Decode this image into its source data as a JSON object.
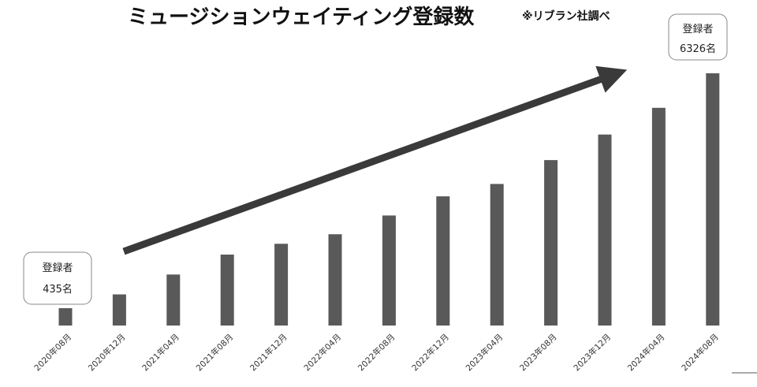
{
  "chart_data": {
    "type": "bar",
    "title": "ミュージションウェイティング登録数",
    "note": "※リブラン社調べ",
    "categories": [
      "2020年08月",
      "2020年12月",
      "2021年04月",
      "2021年08月",
      "2021年12月",
      "2022年04月",
      "2022年08月",
      "2022年12月",
      "2023年04月",
      "2023年08月",
      "2023年12月",
      "2024年04月",
      "2024年08月"
    ],
    "values": [
      435,
      780,
      1280,
      1780,
      2050,
      2290,
      2760,
      3240,
      3550,
      4150,
      4790,
      5460,
      6326
    ],
    "ylim": [
      0,
      6326
    ],
    "xlabel": "",
    "ylabel": "",
    "grid": false,
    "bar_color": "#595959",
    "trend_arrow": true,
    "callouts": [
      {
        "index": 0,
        "label": "登録者",
        "value_text": "435名"
      },
      {
        "index": 12,
        "label": "登録者",
        "value_text": "6326名"
      }
    ]
  }
}
